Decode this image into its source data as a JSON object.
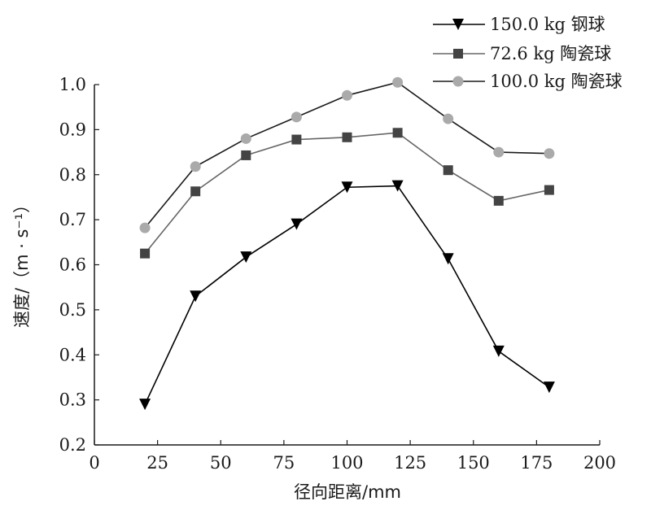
{
  "chart_data": {
    "type": "line",
    "xlabel": "径向距离/mm",
    "ylabel": "速度/（m · s⁻¹）",
    "xlim": [
      0,
      200
    ],
    "ylim": [
      0.2,
      1.0
    ],
    "xticks": [
      0,
      25,
      50,
      75,
      100,
      125,
      150,
      175,
      200
    ],
    "yticks": [
      0.2,
      0.3,
      0.4,
      0.5,
      0.6,
      0.7,
      0.8,
      0.9,
      1.0
    ],
    "x": [
      20,
      40,
      60,
      80,
      100,
      120,
      140,
      160,
      180
    ],
    "grid": false,
    "legend_position": "top-right",
    "series": [
      {
        "name": "150.0 kg 钢球",
        "marker": "triangle-down",
        "color": "#000000",
        "values": [
          0.29,
          0.53,
          0.617,
          0.69,
          0.772,
          0.775,
          0.613,
          0.408,
          0.328
        ]
      },
      {
        "name": "72.6 kg 陶瓷球",
        "marker": "square",
        "color": "#444444",
        "line_color": "#666666",
        "values": [
          0.625,
          0.763,
          0.843,
          0.878,
          0.883,
          0.893,
          0.81,
          0.742,
          0.766
        ]
      },
      {
        "name": "100.0 kg 陶瓷球",
        "marker": "circle",
        "color": "#aaaaaa",
        "line_color": "#1a1a1a",
        "values": [
          0.682,
          0.818,
          0.88,
          0.928,
          0.976,
          1.005,
          0.924,
          0.85,
          0.847
        ]
      }
    ]
  }
}
